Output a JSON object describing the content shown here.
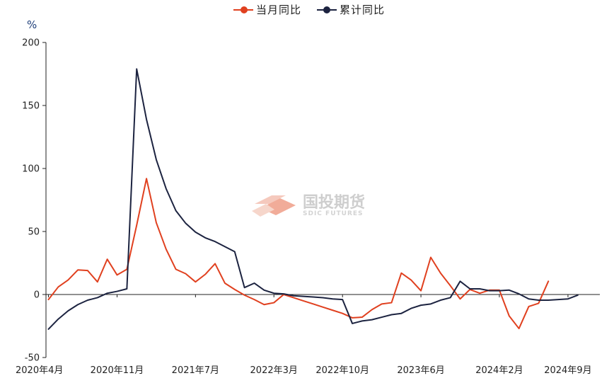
{
  "chart_data": {
    "type": "line",
    "y_unit": "%",
    "ylim": [
      -50,
      200
    ],
    "yticks": [
      -50,
      0,
      50,
      100,
      150,
      200
    ],
    "x_tick_labels": [
      "2020年4月",
      "2020年11月",
      "2021年7月",
      "2022年3月",
      "2022年10月",
      "2023年6月",
      "2024年2月",
      "2024年9月"
    ],
    "x_tick_positions": [
      0,
      7,
      15,
      23,
      30,
      38,
      46,
      53
    ],
    "n_points": 57,
    "legend_position": "top-center",
    "series": [
      {
        "name": "当月同比",
        "color": "#e0401f",
        "values": [
          -4,
          6,
          11.5,
          19.5,
          19,
          10,
          28,
          15.5,
          20,
          55,
          92,
          57,
          36,
          20,
          16.5,
          10,
          16,
          24.5,
          9,
          4,
          -0.5,
          -4,
          -8,
          -6.5,
          0,
          -2.5,
          -5,
          -7.5,
          -10,
          -12.5,
          -15,
          -18.5,
          -18,
          -12,
          -7.5,
          -6.5,
          17,
          11.5,
          3,
          29.5,
          17,
          7,
          -3.5,
          4,
          1,
          3.5,
          3.5,
          -17,
          -27,
          -9.5,
          -7,
          10.5,
          null,
          null,
          null,
          null,
          null
        ]
      },
      {
        "name": "累计同比",
        "color": "#1c2340",
        "values": [
          -27.5,
          -19.5,
          -13,
          -8,
          -4.5,
          -2.5,
          1,
          2.5,
          4.5,
          179,
          139,
          107,
          84,
          66.5,
          56.5,
          49.5,
          45,
          42,
          38,
          34,
          5.5,
          9,
          3.5,
          1,
          0.5,
          -1,
          -1.5,
          -2,
          -2.5,
          -3.5,
          -4,
          -23,
          -21,
          -20,
          -18,
          -16,
          -15,
          -11,
          -8.5,
          -7.5,
          -4.5,
          -2.5,
          10.5,
          4.5,
          4.5,
          3,
          3,
          3.5,
          0.5,
          -3.5,
          -4.5,
          -4.5,
          -4,
          -3.5,
          -0.5,
          null,
          null
        ]
      }
    ]
  },
  "watermark": {
    "name_cn": "国投期货",
    "name_en": "SDIC FUTURES"
  }
}
